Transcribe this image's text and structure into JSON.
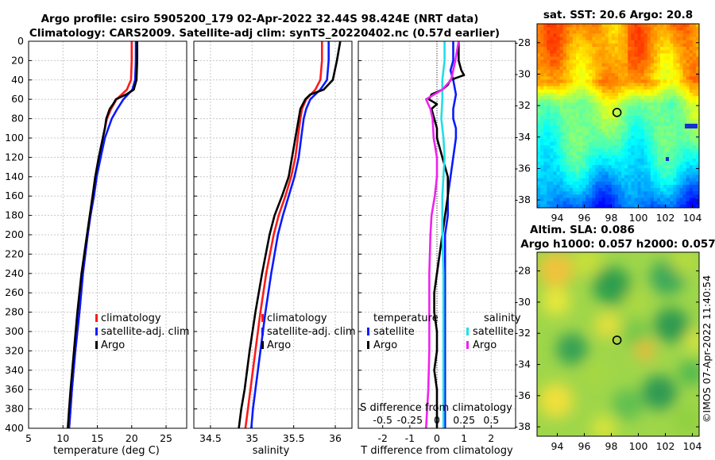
{
  "title": {
    "line1": "Argo profile: csiro 5905200_179 02-Apr-2022 32.44S 98.424E (NRT data)",
    "line2": "Climatology: CARS2009. Satellite-adj clim: synTS_20220402.nc (0.57d earlier)"
  },
  "colors": {
    "climatology": "#ff1a1a",
    "satellite": "#0a1aff",
    "argo": "#000000",
    "sal_sat": "#22dde8",
    "sal_argo": "#ee22ee"
  },
  "chart_data": [
    {
      "type": "line",
      "name": "temperature",
      "xlabel": "temperature (deg C)",
      "ylabel": "",
      "xlim": [
        5,
        28
      ],
      "ylim": [
        400,
        0
      ],
      "xticks": [
        "5",
        "10",
        "15",
        "20",
        "25"
      ],
      "yticks": [
        "0",
        "20",
        "40",
        "60",
        "80",
        "100",
        "120",
        "140",
        "160",
        "180",
        "200",
        "220",
        "240",
        "260",
        "280",
        "300",
        "320",
        "340",
        "360",
        "380",
        "400"
      ],
      "legend": [
        "climatology",
        "satellite-adj. clim",
        "Argo"
      ],
      "series": [
        {
          "name": "climatology",
          "depth": [
            0,
            20,
            40,
            50,
            60,
            70,
            80,
            100,
            120,
            140,
            160,
            180,
            200,
            240,
            280,
            320,
            360,
            380,
            400
          ],
          "values": [
            20.0,
            20.0,
            19.9,
            19.3,
            17.8,
            17.0,
            16.4,
            15.8,
            15.3,
            14.9,
            14.5,
            14.0,
            13.6,
            12.9,
            12.4,
            11.8,
            11.3,
            11.1,
            10.9
          ]
        },
        {
          "name": "satellite-adj. clim",
          "depth": [
            0,
            20,
            40,
            50,
            60,
            70,
            80,
            100,
            120,
            140,
            160,
            180,
            200,
            240,
            280,
            320,
            360,
            380,
            400
          ],
          "values": [
            20.6,
            20.6,
            20.5,
            20.1,
            18.8,
            17.9,
            17.1,
            16.1,
            15.5,
            14.9,
            14.5,
            14.0,
            13.6,
            12.9,
            12.4,
            11.8,
            11.3,
            11.1,
            10.9
          ]
        },
        {
          "name": "Argo",
          "depth": [
            0,
            20,
            40,
            50,
            55,
            60,
            65,
            70,
            80,
            90,
            100,
            120,
            140,
            160,
            180,
            200,
            240,
            280,
            320,
            360,
            380,
            400
          ],
          "values": [
            20.8,
            20.8,
            20.7,
            20.3,
            19.2,
            17.7,
            17.3,
            16.8,
            16.3,
            16.1,
            15.8,
            15.2,
            14.7,
            14.3,
            13.9,
            13.5,
            12.7,
            12.1,
            11.6,
            11.1,
            10.9,
            10.7
          ]
        }
      ]
    },
    {
      "type": "line",
      "name": "salinity",
      "xlabel": "salinity",
      "xlim": [
        34.3,
        36.2
      ],
      "ylim": [
        400,
        0
      ],
      "xticks": [
        "34.5",
        "35",
        "35.5",
        "36"
      ],
      "legend": [
        "climatology",
        "satellite-adj. clim",
        "Argo"
      ],
      "series": [
        {
          "name": "climatology",
          "depth": [
            0,
            20,
            40,
            50,
            60,
            70,
            80,
            100,
            120,
            140,
            160,
            180,
            200,
            240,
            280,
            320,
            360,
            380,
            400
          ],
          "values": [
            35.84,
            35.84,
            35.82,
            35.76,
            35.65,
            35.6,
            35.58,
            35.55,
            35.52,
            35.47,
            35.4,
            35.32,
            35.26,
            35.17,
            35.1,
            35.04,
            34.98,
            34.95,
            34.92
          ]
        },
        {
          "name": "satellite-adj. clim",
          "depth": [
            0,
            20,
            40,
            50,
            60,
            70,
            80,
            100,
            120,
            140,
            160,
            180,
            200,
            240,
            280,
            320,
            360,
            380,
            400
          ],
          "values": [
            35.92,
            35.92,
            35.9,
            35.82,
            35.7,
            35.65,
            35.62,
            35.59,
            35.56,
            35.51,
            35.44,
            35.37,
            35.31,
            35.23,
            35.16,
            35.1,
            35.04,
            35.01,
            34.99
          ]
        },
        {
          "name": "Argo",
          "depth": [
            0,
            20,
            40,
            50,
            55,
            60,
            70,
            80,
            100,
            120,
            140,
            160,
            180,
            200,
            240,
            280,
            320,
            360,
            380,
            400
          ],
          "values": [
            36.06,
            36.02,
            35.97,
            35.86,
            35.7,
            35.64,
            35.58,
            35.56,
            35.52,
            35.48,
            35.44,
            35.36,
            35.27,
            35.21,
            35.12,
            35.04,
            34.97,
            34.91,
            34.87,
            34.84
          ]
        }
      ]
    },
    {
      "type": "line",
      "name": "difference",
      "xlabel": "T difference from climatology",
      "xlabel_top": "S difference from climatology",
      "xlim": [
        -2.9,
        2.9
      ],
      "ylim": [
        400,
        0
      ],
      "xticks": [
        "-2",
        "-1",
        "0",
        "1",
        "2"
      ],
      "s_xticks": [
        "-0.5",
        "-0.25",
        "0",
        "0.25",
        "0.5"
      ],
      "legend_left_title": "temperature",
      "legend_right_title": "salinity",
      "legend_left": [
        "satellite",
        "Argo"
      ],
      "legend_right": [
        "satellite",
        "Argo"
      ],
      "series": [
        {
          "name": "T satellite",
          "depth": [
            0,
            20,
            30,
            40,
            55,
            70,
            80,
            90,
            100,
            120,
            140,
            160,
            180,
            200,
            220,
            240,
            260,
            280,
            300,
            320,
            340,
            360,
            380,
            400
          ],
          "values": [
            0.6,
            0.6,
            0.5,
            0.6,
            0.7,
            0.6,
            0.6,
            0.7,
            0.7,
            0.6,
            0.5,
            0.4,
            0.4,
            0.3,
            0.3,
            0.3,
            0.3,
            0.3,
            0.3,
            0.3,
            0.3,
            0.3,
            0.3,
            0.3
          ]
        },
        {
          "name": "T Argo",
          "depth": [
            0,
            10,
            20,
            30,
            35,
            40,
            45,
            50,
            55,
            60,
            65,
            70,
            80,
            90,
            100,
            120,
            140,
            160,
            180,
            200,
            220,
            240,
            260,
            280,
            300,
            320,
            340,
            360,
            380,
            400
          ],
          "values": [
            0.8,
            0.8,
            0.8,
            0.9,
            1.0,
            0.5,
            0.4,
            0.2,
            -0.2,
            -0.3,
            0.0,
            -0.2,
            -0.1,
            0.0,
            0.0,
            0.2,
            0.4,
            0.4,
            0.3,
            0.2,
            0.1,
            0.0,
            -0.1,
            -0.1,
            0.0,
            0.0,
            -0.1,
            0.0,
            0.0,
            0.0
          ]
        },
        {
          "name": "S satellite",
          "depth": [
            0,
            20,
            40,
            60,
            80,
            100,
            120,
            140,
            160,
            180,
            200,
            240,
            280,
            320,
            360,
            380,
            400
          ],
          "values": [
            0.07,
            0.07,
            0.05,
            0.05,
            0.04,
            0.06,
            0.07,
            0.06,
            0.05,
            0.05,
            0.05,
            0.06,
            0.06,
            0.06,
            0.06,
            0.06,
            0.06
          ]
        },
        {
          "name": "S Argo",
          "depth": [
            0,
            20,
            40,
            50,
            60,
            70,
            80,
            100,
            120,
            140,
            160,
            180,
            200,
            240,
            280,
            320,
            360,
            380,
            400
          ],
          "values": [
            0.2,
            0.17,
            0.13,
            0.05,
            -0.1,
            -0.06,
            -0.04,
            -0.03,
            0.0,
            0.0,
            -0.02,
            -0.05,
            -0.06,
            -0.07,
            -0.07,
            -0.07,
            -0.08,
            -0.09,
            -0.1
          ]
        }
      ]
    },
    {
      "type": "heatmap",
      "name": "sst",
      "title": "sat. SST: 20.6 Argo: 20.8",
      "xlim": [
        92.5,
        104.5
      ],
      "ylim": [
        -38.5,
        -26.8
      ],
      "xticks": [
        "94",
        "96",
        "98",
        "100",
        "102",
        "104"
      ],
      "yticks": [
        "-28",
        "-30",
        "-32",
        "-34",
        "-36",
        "-38"
      ],
      "argo_lon": 98.42,
      "argo_lat": -32.44
    },
    {
      "type": "heatmap",
      "name": "sla",
      "title_line1": "Altim. SLA: 0.086",
      "title_line2": "Argo h1000: 0.057 h2000: 0.057",
      "xlim": [
        92.5,
        104.5
      ],
      "ylim": [
        -38.6,
        -26.8
      ],
      "xticks": [
        "94",
        "96",
        "98",
        "100",
        "102",
        "104"
      ],
      "yticks": [
        "-28",
        "-30",
        "-32",
        "-34",
        "-36",
        "-38"
      ],
      "argo_lon": 98.42,
      "argo_lat": -32.44
    }
  ],
  "credit": "©IMOS 07-Apr-2022 11:40:54"
}
